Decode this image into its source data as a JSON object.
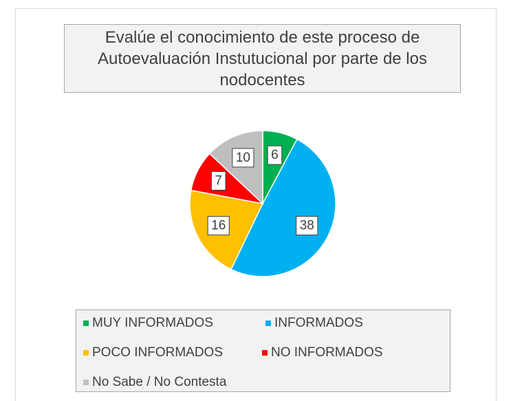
{
  "chart_data": {
    "type": "pie",
    "title": "Evalúe el conocimiento de este proceso de Autoevaluación Instutucional por parte de los nodocentes",
    "categories": [
      "MUY INFORMADOS",
      "INFORMADOS",
      "POCO INFORMADOS",
      "NO INFORMADOS",
      "No Sabe / No Contesta"
    ],
    "values": [
      6,
      38,
      16,
      7,
      10
    ],
    "colors": [
      "#00b050",
      "#00b0f0",
      "#ffc000",
      "#ff0000",
      "#bfbfbf"
    ]
  }
}
